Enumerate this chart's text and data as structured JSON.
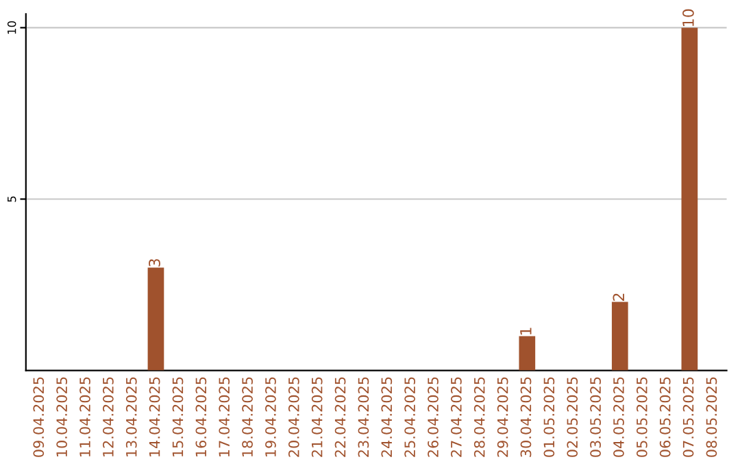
{
  "chart_data": {
    "type": "bar",
    "categories": [
      "09.04.2025",
      "10.04.2025",
      "11.04.2025",
      "12.04.2025",
      "13.04.2025",
      "14.04.2025",
      "15.04.2025",
      "16.04.2025",
      "17.04.2025",
      "18.04.2025",
      "19.04.2025",
      "20.04.2025",
      "21.04.2025",
      "22.04.2025",
      "23.04.2025",
      "24.04.2025",
      "25.04.2025",
      "26.04.2025",
      "27.04.2025",
      "28.04.2025",
      "29.04.2025",
      "30.04.2025",
      "01.05.2025",
      "02.05.2025",
      "03.05.2025",
      "04.05.2025",
      "05.05.2025",
      "06.05.2025",
      "07.05.2025",
      "08.05.2025"
    ],
    "values": [
      0,
      0,
      0,
      0,
      0,
      3,
      0,
      0,
      0,
      0,
      0,
      0,
      0,
      0,
      0,
      0,
      0,
      0,
      0,
      0,
      0,
      1,
      0,
      0,
      0,
      2,
      0,
      0,
      10,
      0
    ],
    "value_labels": [
      null,
      null,
      null,
      null,
      null,
      "3",
      null,
      null,
      null,
      null,
      null,
      null,
      null,
      null,
      null,
      null,
      null,
      null,
      null,
      null,
      null,
      "1",
      null,
      null,
      null,
      "2",
      null,
      null,
      "10",
      null
    ],
    "color": "#a0522d",
    "ylim": [
      0,
      10.4
    ],
    "yticks": [
      5,
      10
    ],
    "grid": "y"
  }
}
